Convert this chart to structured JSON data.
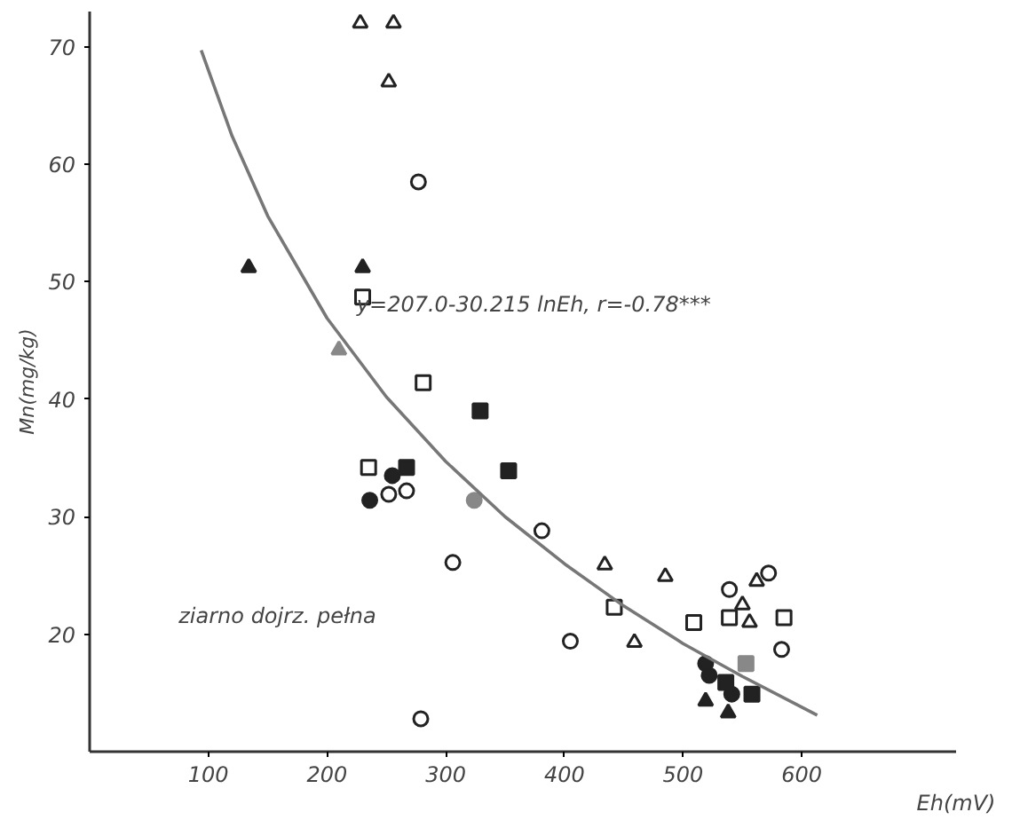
{
  "chart_data": {
    "type": "scatter",
    "xlabel": "Eh(mV)",
    "ylabel": "Mn(mg/kg)",
    "xlim": [
      0,
      730
    ],
    "ylim": [
      10,
      73
    ],
    "xticks": [
      100,
      200,
      300,
      400,
      500,
      600
    ],
    "yticks": [
      20,
      30,
      40,
      50,
      60,
      70
    ],
    "grid": false,
    "annotations": [
      "y=207.0-30.215 lnEh, r=-0.78***",
      "ziarno dojrz. pełna"
    ],
    "series": [
      {
        "marker": "triangle",
        "color": "#ffffff",
        "x": [
          228,
          256,
          252,
          434,
          485,
          459,
          562,
          550,
          556
        ],
        "values": [
          72,
          72,
          67,
          25.9,
          24.9,
          19.3,
          24.5,
          22.5,
          21.0
        ]
      },
      {
        "marker": "triangle",
        "color": "#222222",
        "x": [
          134,
          230,
          519,
          538
        ],
        "values": [
          51.2,
          51.2,
          14.3,
          13.3
        ]
      },
      {
        "marker": "circle",
        "color": "#ffffff",
        "x": [
          277,
          252,
          267,
          381,
          306,
          405,
          279,
          539,
          572,
          583
        ],
        "values": [
          58.5,
          31.9,
          32.2,
          28.8,
          26.1,
          19.4,
          12.8,
          23.8,
          25.2,
          18.7
        ]
      },
      {
        "marker": "circle",
        "color": "#222222",
        "x": [
          255,
          236,
          519,
          522,
          541
        ],
        "values": [
          33.5,
          31.4,
          17.5,
          16.5,
          14.9
        ]
      },
      {
        "marker": "square",
        "color": "#ffffff",
        "x": [
          230,
          281,
          235,
          442,
          509,
          539,
          585
        ],
        "values": [
          48.7,
          41.4,
          34.2,
          22.3,
          21.0,
          21.4,
          21.4
        ]
      },
      {
        "marker": "square",
        "color": "#222222",
        "x": [
          329,
          267,
          353,
          536,
          558
        ],
        "values": [
          39.0,
          34.2,
          33.9,
          15.9,
          14.9
        ]
      },
      {
        "marker": "triangle",
        "color": "#888888",
        "x": [
          210
        ],
        "values": [
          44.2
        ]
      },
      {
        "marker": "circle",
        "color": "#888888",
        "x": [
          324
        ],
        "values": [
          31.4
        ]
      },
      {
        "marker": "square",
        "color": "#888888",
        "x": [
          553
        ],
        "values": [
          17.5
        ]
      },
      {
        "type": "line",
        "marker": "none",
        "color": "#777777",
        "x": [
          94,
          120,
          150,
          200,
          250,
          300,
          350,
          400,
          450,
          500,
          550,
          613
        ],
        "values": [
          69.7,
          62.4,
          55.6,
          46.9,
          40.2,
          34.7,
          30.0,
          26.0,
          22.4,
          19.2,
          16.4,
          13.1
        ]
      }
    ]
  }
}
